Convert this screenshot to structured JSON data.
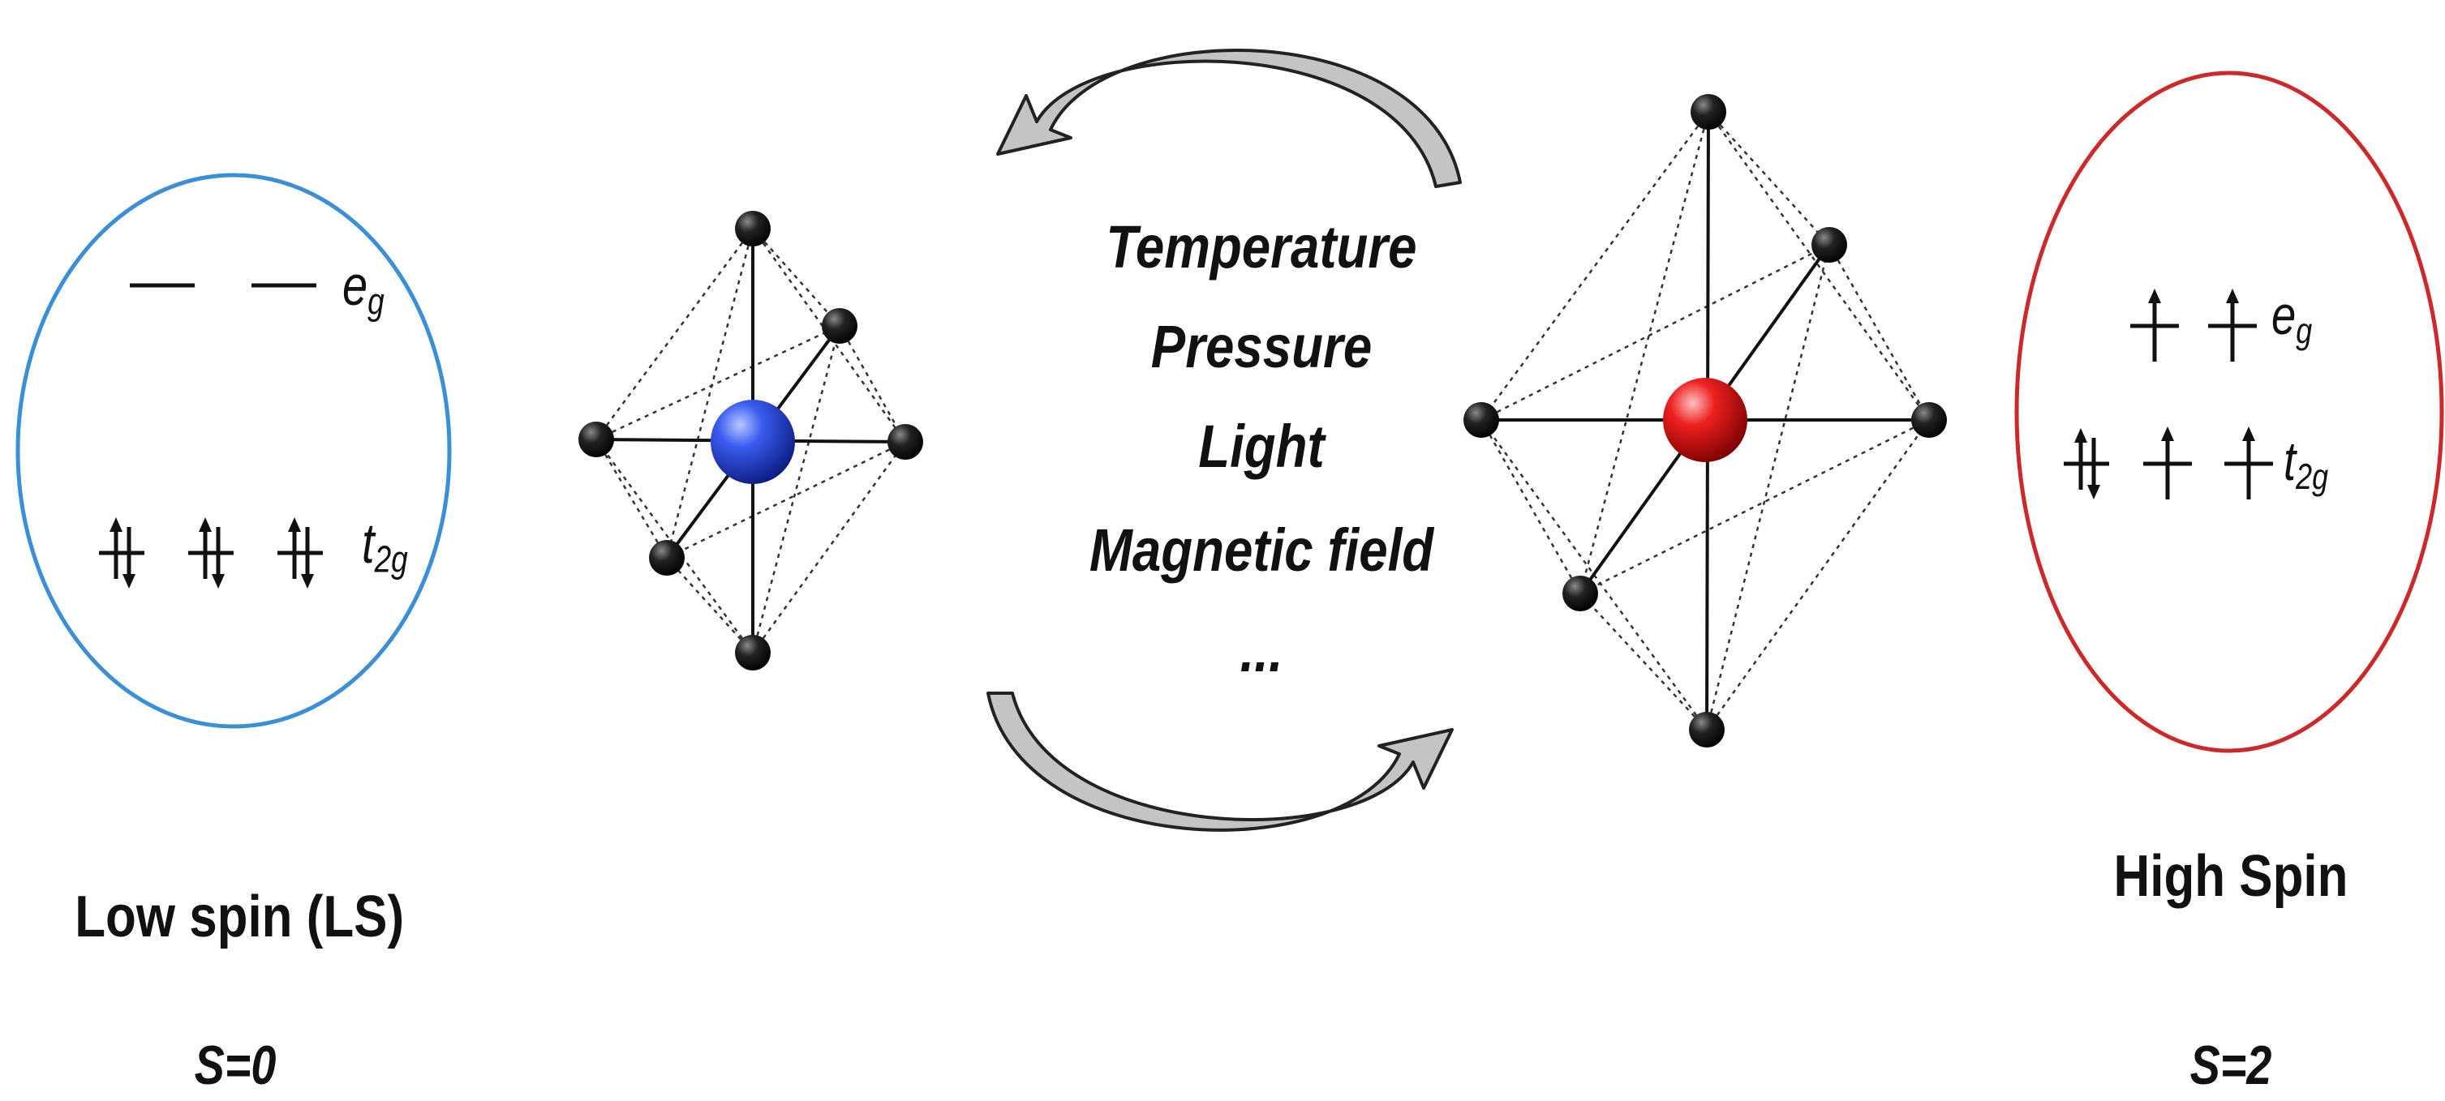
{
  "colors": {
    "low_spin_ring": "#3a8fd6",
    "high_spin_ring": "#cc2a2a",
    "low_spin_atom": "#1f3fd8",
    "high_spin_atom": "#e01818",
    "ligand": "#111111",
    "arrow_fill": "#c4c4c4"
  },
  "low_spin": {
    "state_label": "Low spin (LS)",
    "spin_value": "S=0",
    "eg_label": {
      "letter": "e",
      "sub": "g"
    },
    "t2g_label": {
      "letter": "t",
      "sub": "2g"
    },
    "eg_electrons": [
      0,
      0
    ],
    "t2g_electrons": [
      2,
      2,
      2
    ]
  },
  "high_spin": {
    "state_label": "High Spin",
    "spin_value": "S=2",
    "eg_label": {
      "letter": "e",
      "sub": "g"
    },
    "t2g_label": {
      "letter": "t",
      "sub": "2g"
    },
    "eg_electrons": [
      1,
      1
    ],
    "t2g_electrons": [
      2,
      1,
      1
    ]
  },
  "stimuli": [
    "Temperature",
    "Pressure",
    "Light",
    "Magnetic field",
    "..."
  ]
}
